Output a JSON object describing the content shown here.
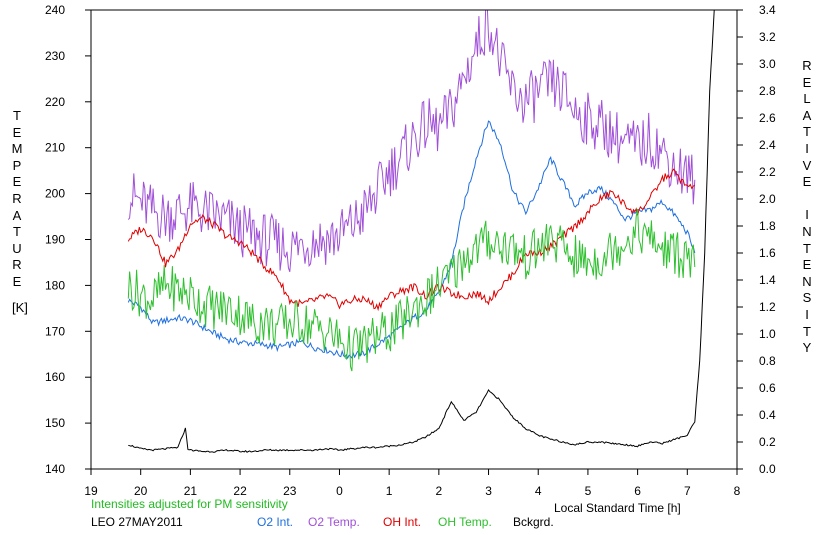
{
  "colors": {
    "o2_int": "#1f6fe0",
    "o2_temp": "#a050d8",
    "oh_int": "#e00000",
    "oh_temp": "#2ec02e",
    "background": "#000000",
    "note": "#22bb22"
  },
  "chart_data": {
    "type": "line",
    "xlabel": "Local Standard Time [h]",
    "ylabel_left": "TEMPERATURE",
    "ylabel_left_unit": "[K]",
    "ylabel_right": "RELATIVE INTENSITY",
    "x_ticks": [
      "19",
      "20",
      "21",
      "22",
      "23",
      "0",
      "1",
      "2",
      "3",
      "4",
      "5",
      "6",
      "7",
      "8"
    ],
    "xlim": [
      19,
      32
    ],
    "ylim_left": [
      140,
      240
    ],
    "ylim_right": [
      0,
      3.4
    ],
    "y_ticks_left": [
      140,
      150,
      160,
      170,
      180,
      190,
      200,
      210,
      220,
      230,
      240
    ],
    "y_ticks_right": [
      "0.0",
      "0.2",
      "0.4",
      "0.6",
      "0.8",
      "1.0",
      "1.2",
      "1.4",
      "1.6",
      "1.8",
      "2.0",
      "2.2",
      "2.4",
      "2.6",
      "2.8",
      "3.0",
      "3.2",
      "3.4"
    ],
    "note": "Intensities adjusted for PM sensitivity",
    "station": "LEO 27MAY2011",
    "legend_placement": "bottom",
    "grid": false,
    "series": [
      {
        "name": "O2 Int.",
        "axis": "right",
        "color_key": "o2_int",
        "x": [
          19.75,
          20.0,
          20.25,
          20.5,
          20.75,
          21.0,
          21.25,
          21.5,
          21.75,
          22.0,
          22.25,
          22.5,
          22.75,
          23.0,
          23.25,
          23.5,
          23.75,
          24.0,
          24.25,
          24.5,
          24.75,
          25.0,
          25.25,
          25.5,
          25.75,
          26.0,
          26.25,
          26.5,
          26.75,
          27.0,
          27.25,
          27.5,
          27.75,
          28.0,
          28.25,
          28.5,
          28.75,
          29.0,
          29.25,
          29.5,
          29.75,
          30.0,
          30.25,
          30.5,
          30.75,
          31.0,
          31.15
        ],
        "y": [
          1.25,
          1.2,
          1.08,
          1.1,
          1.12,
          1.1,
          1.05,
          1.0,
          0.96,
          0.94,
          0.93,
          0.92,
          0.9,
          0.92,
          0.94,
          0.9,
          0.88,
          0.85,
          0.84,
          0.86,
          0.92,
          0.98,
          1.05,
          1.12,
          1.18,
          1.3,
          1.52,
          1.95,
          2.3,
          2.58,
          2.4,
          2.05,
          1.9,
          2.08,
          2.3,
          2.12,
          1.95,
          2.05,
          2.08,
          1.98,
          1.85,
          1.9,
          1.92,
          1.98,
          1.88,
          1.75,
          1.6
        ]
      },
      {
        "name": "O2 Temp.",
        "axis": "left",
        "color_key": "o2_temp",
        "x": [
          19.75,
          20.0,
          20.25,
          20.5,
          20.75,
          21.0,
          21.25,
          21.5,
          21.75,
          22.0,
          22.25,
          22.5,
          22.75,
          23.0,
          23.25,
          23.5,
          23.75,
          24.0,
          24.25,
          24.5,
          24.75,
          25.0,
          25.25,
          25.5,
          25.75,
          26.0,
          26.25,
          26.5,
          26.75,
          27.0,
          27.25,
          27.5,
          27.75,
          28.0,
          28.25,
          28.5,
          28.75,
          29.0,
          29.25,
          29.5,
          29.75,
          30.0,
          30.25,
          30.5,
          30.75,
          31.0,
          31.15
        ],
        "y": [
          200,
          198,
          196,
          195,
          196,
          197,
          196,
          195,
          194,
          192,
          191,
          190,
          189,
          188,
          189,
          190,
          190,
          191,
          193,
          196,
          200,
          205,
          208,
          212,
          215,
          214,
          218,
          225,
          232,
          238,
          228,
          222,
          220,
          222,
          224,
          222,
          218,
          216,
          215,
          213,
          211,
          210,
          212,
          209,
          206,
          204,
          203
        ]
      },
      {
        "name": "OH Int.",
        "axis": "right",
        "color_key": "oh_int",
        "x": [
          19.75,
          20.0,
          20.25,
          20.5,
          20.75,
          21.0,
          21.25,
          21.5,
          21.75,
          22.0,
          22.25,
          22.5,
          22.75,
          23.0,
          23.25,
          23.5,
          23.75,
          24.0,
          24.25,
          24.5,
          24.75,
          25.0,
          25.25,
          25.5,
          25.75,
          26.0,
          26.25,
          26.5,
          26.75,
          27.0,
          27.25,
          27.5,
          27.75,
          28.0,
          28.25,
          28.5,
          28.75,
          29.0,
          29.25,
          29.5,
          29.75,
          30.0,
          30.25,
          30.5,
          30.75,
          31.0,
          31.15
        ],
        "y": [
          1.7,
          1.78,
          1.72,
          1.52,
          1.62,
          1.82,
          1.86,
          1.8,
          1.72,
          1.68,
          1.6,
          1.5,
          1.42,
          1.25,
          1.22,
          1.25,
          1.28,
          1.22,
          1.25,
          1.26,
          1.2,
          1.28,
          1.32,
          1.35,
          1.28,
          1.35,
          1.3,
          1.28,
          1.3,
          1.25,
          1.35,
          1.45,
          1.6,
          1.6,
          1.65,
          1.72,
          1.8,
          1.9,
          2.0,
          2.05,
          1.95,
          1.9,
          2.0,
          2.15,
          2.2,
          2.08,
          2.1
        ]
      },
      {
        "name": "OH Temp.",
        "axis": "left",
        "color_key": "oh_temp",
        "x": [
          19.75,
          20.0,
          20.25,
          20.5,
          20.75,
          21.0,
          21.25,
          21.5,
          21.75,
          22.0,
          22.25,
          22.5,
          22.75,
          23.0,
          23.25,
          23.5,
          23.75,
          24.0,
          24.25,
          24.5,
          24.75,
          25.0,
          25.25,
          25.5,
          25.75,
          26.0,
          26.25,
          26.5,
          26.75,
          27.0,
          27.25,
          27.5,
          27.75,
          28.0,
          28.25,
          28.5,
          28.75,
          29.0,
          29.25,
          29.5,
          29.75,
          30.0,
          30.25,
          30.5,
          30.75,
          31.0,
          31.15
        ],
        "y": [
          180,
          178,
          177,
          180,
          179,
          178,
          176,
          175,
          175,
          174,
          172,
          172,
          171,
          172,
          172,
          171,
          170,
          168,
          166,
          167,
          169,
          170,
          172,
          175,
          177,
          180,
          182,
          186,
          188,
          190,
          189,
          188,
          186,
          188,
          190,
          188,
          186,
          185,
          186,
          188,
          190,
          192,
          190,
          188,
          187,
          186,
          184
        ]
      },
      {
        "name": "Bckgrd.",
        "axis": "right",
        "color_key": "background",
        "x": [
          19.75,
          20.0,
          20.25,
          20.5,
          20.75,
          20.9,
          20.95,
          21.0,
          21.25,
          21.5,
          21.75,
          22.0,
          22.25,
          22.5,
          22.75,
          23.0,
          23.25,
          23.5,
          23.75,
          24.0,
          24.25,
          24.5,
          24.75,
          25.0,
          25.25,
          25.5,
          25.75,
          26.0,
          26.25,
          26.5,
          26.75,
          27.0,
          27.2,
          27.5,
          27.75,
          28.0,
          28.25,
          28.5,
          28.75,
          29.0,
          29.25,
          29.5,
          29.75,
          30.0,
          30.25,
          30.5,
          30.75,
          31.0,
          31.15,
          31.25,
          31.35,
          31.45,
          31.55
        ],
        "y": [
          0.18,
          0.15,
          0.14,
          0.15,
          0.16,
          0.3,
          0.15,
          0.14,
          0.13,
          0.13,
          0.14,
          0.13,
          0.13,
          0.14,
          0.14,
          0.14,
          0.14,
          0.14,
          0.15,
          0.14,
          0.15,
          0.16,
          0.16,
          0.17,
          0.18,
          0.2,
          0.24,
          0.3,
          0.5,
          0.36,
          0.42,
          0.58,
          0.52,
          0.38,
          0.3,
          0.25,
          0.22,
          0.2,
          0.18,
          0.2,
          0.2,
          0.19,
          0.18,
          0.17,
          0.2,
          0.19,
          0.22,
          0.25,
          0.35,
          0.8,
          1.6,
          2.8,
          3.45
        ]
      }
    ]
  }
}
